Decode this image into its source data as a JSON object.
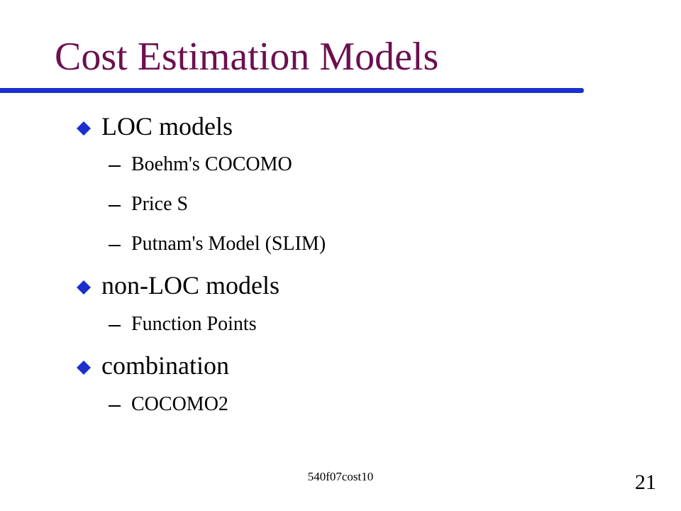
{
  "colors": {
    "title": "#6b1050",
    "rule": "#1a2fd0",
    "bullet": "#1a2fd0"
  },
  "slide": {
    "title": "Cost Estimation Models",
    "bullets": [
      {
        "text": "LOC models",
        "marker_icon": "diamond-bullet-icon",
        "subitems": [
          "Boehm's COCOMO",
          "Price S",
          "Putnam's Model (SLIM)"
        ]
      },
      {
        "text": "non-LOC models",
        "marker_icon": "diamond-bullet-icon",
        "subitems": [
          "Function Points"
        ]
      },
      {
        "text": "combination",
        "marker_icon": "diamond-bullet-icon",
        "subitems": [
          "COCOMO2"
        ]
      }
    ],
    "footer": "540f07cost10",
    "page_number": "21"
  }
}
